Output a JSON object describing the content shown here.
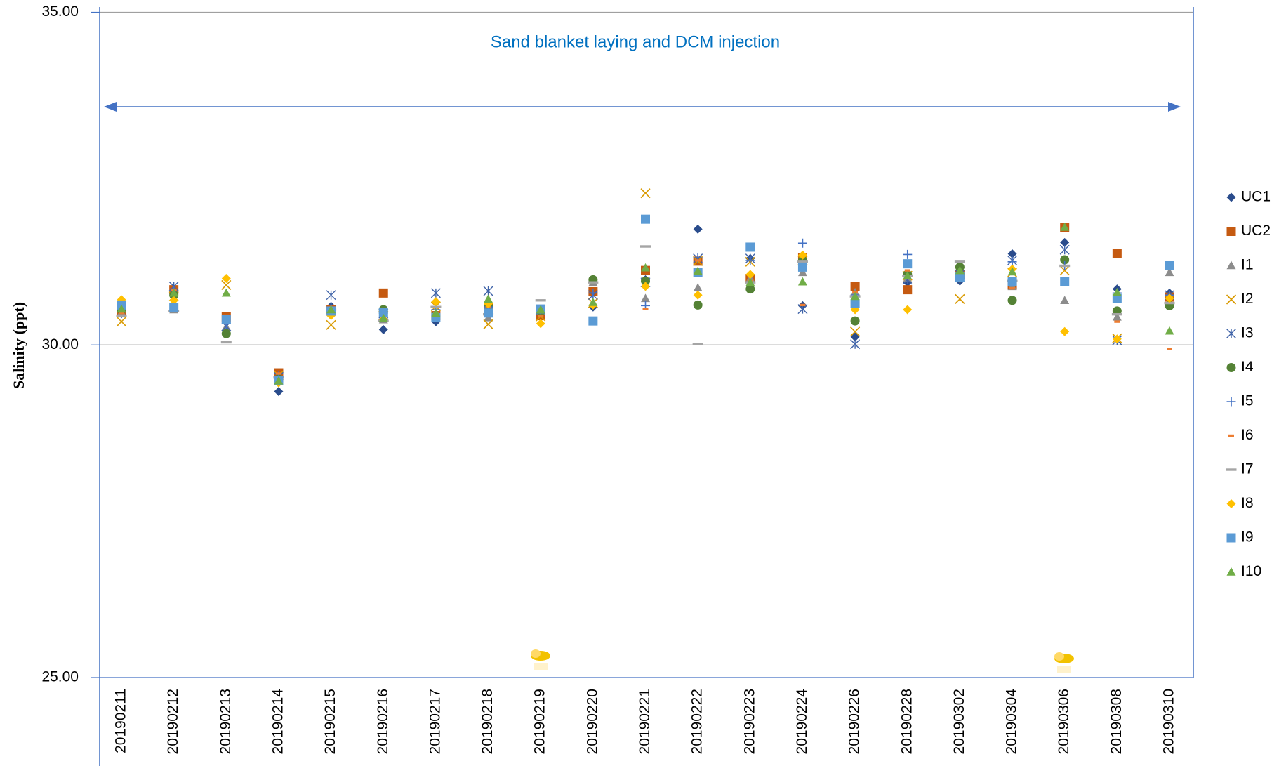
{
  "chart_data": {
    "type": "scatter",
    "annotation": "Sand blanket laying and DCM injection",
    "ylabel": "Salinity (ppt)",
    "ylim": [
      25,
      35
    ],
    "yticks": [
      {
        "value": 25,
        "label": "25.00"
      },
      {
        "value": 30,
        "label": "30.00"
      },
      {
        "value": 35,
        "label": "35.00"
      }
    ],
    "grid": true,
    "legend": "right",
    "categories": [
      "20190211",
      "20190212",
      "20190213",
      "20190214",
      "20190215",
      "20190216",
      "20190217",
      "20190218",
      "20190219",
      "20190220",
      "20190221",
      "20190222",
      "20190223",
      "20190224",
      "20190226",
      "20190228",
      "20190302",
      "20190304",
      "20190306",
      "20190308",
      "20190310"
    ],
    "series": [
      {
        "name": "UC1",
        "color": "#2a4c8c",
        "marker": "diamond",
        "values": [
          30.47,
          30.8,
          30.42,
          29.3,
          30.58,
          30.23,
          30.35,
          30.59,
          30.49,
          30.57,
          30.98,
          31.74,
          31.3,
          30.59,
          30.12,
          30.94,
          30.96,
          31.37,
          31.54,
          30.84,
          30.78
        ]
      },
      {
        "name": "UC2",
        "color": "#c55a11",
        "marker": "square",
        "values": [
          30.51,
          30.83,
          30.42,
          29.58,
          30.53,
          30.78,
          30.44,
          30.56,
          30.44,
          30.8,
          31.12,
          31.26,
          31.0,
          31.31,
          30.88,
          30.83,
          31.06,
          30.9,
          31.77,
          31.37,
          30.72
        ]
      },
      {
        "name": "I1",
        "color": "#8c8c8c",
        "marker": "triangle",
        "values": [
          30.49,
          30.53,
          30.27,
          29.49,
          30.54,
          30.38,
          30.48,
          30.41,
          30.51,
          30.94,
          30.7,
          30.86,
          31.0,
          31.09,
          30.79,
          31.0,
          31.12,
          30.88,
          30.67,
          30.42,
          31.09
        ]
      },
      {
        "name": "I2",
        "color": "#d99a00",
        "marker": "x",
        "values": [
          30.35,
          30.73,
          30.9,
          29.54,
          30.3,
          30.44,
          30.58,
          30.31,
          30.43,
          30.63,
          32.28,
          31.26,
          31.25,
          31.27,
          30.2,
          31.04,
          30.69,
          31.09,
          31.12,
          30.1,
          30.68
        ]
      },
      {
        "name": "I3",
        "color": "#3f63a8",
        "marker": "asterisk",
        "values": [
          30.56,
          30.88,
          30.28,
          29.52,
          30.75,
          30.47,
          30.78,
          30.81,
          30.53,
          30.75,
          30.94,
          31.3,
          31.3,
          30.54,
          30.01,
          30.98,
          31.06,
          31.27,
          31.43,
          30.07,
          30.75
        ]
      },
      {
        "name": "I4",
        "color": "#548235",
        "marker": "circle",
        "values": [
          30.53,
          30.75,
          30.17,
          29.49,
          30.51,
          30.53,
          30.44,
          30.58,
          30.51,
          30.98,
          30.96,
          30.6,
          30.84,
          31.27,
          30.36,
          31.06,
          31.17,
          30.67,
          31.28,
          30.51,
          30.59
        ]
      },
      {
        "name": "I5",
        "color": "#4472c4",
        "marker": "plus",
        "values": [
          30.57,
          30.81,
          30.32,
          29.53,
          30.56,
          30.48,
          30.53,
          30.57,
          30.53,
          30.78,
          30.59,
          31.31,
          31.27,
          31.53,
          30.75,
          31.36,
          31.09,
          31.25,
          31.19,
          30.78,
          30.75
        ]
      },
      {
        "name": "I6",
        "color": "#ed7d31",
        "marker": "dash",
        "values": [
          30.48,
          30.83,
          30.44,
          29.57,
          30.51,
          30.47,
          30.48,
          30.57,
          30.44,
          30.62,
          30.54,
          31.27,
          30.96,
          30.6,
          30.79,
          31.12,
          31.1,
          30.85,
          31.74,
          30.35,
          29.94
        ]
      },
      {
        "name": "I7",
        "color": "#a5a5a5",
        "marker": "longdash",
        "values": [
          30.44,
          30.51,
          30.04,
          29.51,
          30.53,
          30.36,
          30.57,
          30.46,
          30.67,
          30.94,
          31.48,
          30.01,
          30.94,
          31.25,
          30.73,
          31.04,
          31.25,
          30.96,
          31.19,
          30.46,
          30.63
        ]
      },
      {
        "name": "I8",
        "color": "#ffc000",
        "marker": "diamond",
        "values": [
          30.68,
          30.67,
          31.0,
          29.43,
          30.44,
          30.47,
          30.65,
          30.62,
          30.32,
          30.6,
          30.88,
          30.75,
          31.06,
          31.35,
          30.53,
          30.53,
          31.0,
          31.14,
          30.2,
          30.09,
          30.7
        ]
      },
      {
        "name": "I9",
        "color": "#5b9bd5",
        "marker": "square",
        "values": [
          30.6,
          30.56,
          30.38,
          29.47,
          30.51,
          30.49,
          30.41,
          30.48,
          30.54,
          30.36,
          31.89,
          31.09,
          31.47,
          31.17,
          30.62,
          31.22,
          31.02,
          30.95,
          30.95,
          30.7,
          31.19
        ]
      },
      {
        "name": "I10",
        "color": "#70ad47",
        "marker": "triangle",
        "values": [
          30.54,
          30.78,
          30.78,
          29.46,
          30.53,
          30.4,
          30.48,
          30.69,
          30.53,
          30.64,
          31.16,
          31.11,
          30.94,
          30.95,
          30.73,
          31.04,
          31.12,
          31.1,
          31.77,
          30.79,
          30.21
        ]
      }
    ]
  }
}
